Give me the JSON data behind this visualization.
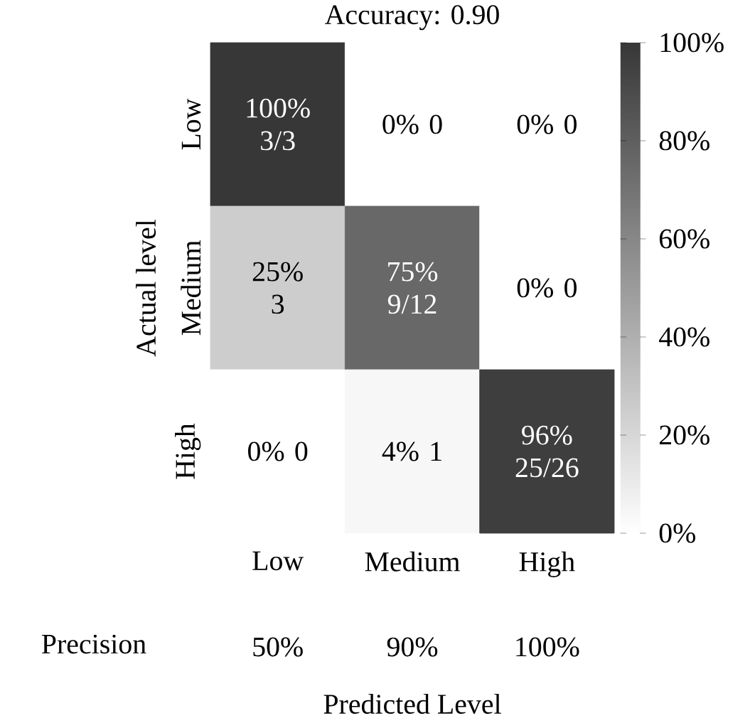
{
  "chart_data": {
    "type": "heatmap",
    "title": "Accuracy: 0.90",
    "xlabel": "Predicted Level",
    "ylabel": "Actual level",
    "categories": [
      "Low",
      "Medium",
      "High"
    ],
    "y_categories": [
      "Low",
      "Medium",
      "High"
    ],
    "cells": [
      [
        100,
        0,
        0
      ],
      [
        25,
        75,
        0
      ],
      [
        0,
        4,
        96
      ]
    ],
    "cell_labels": [
      [
        "100% 3/3",
        "0% 0",
        "0% 0"
      ],
      [
        "25% 3",
        "75% 9/12",
        "0% 0"
      ],
      [
        "0% 0",
        "4% 1",
        "96% 25/26"
      ]
    ],
    "clim": [
      0,
      100
    ],
    "cticks": [
      {
        "value": 0,
        "label": "0%"
      },
      {
        "value": 20,
        "label": "20%"
      },
      {
        "value": 40,
        "label": "40%"
      },
      {
        "value": 60,
        "label": "60%"
      },
      {
        "value": 80,
        "label": "80%"
      },
      {
        "value": 100,
        "label": "100%"
      }
    ],
    "annotations": [
      "Precision",
      "50%",
      "90%",
      "100%"
    ]
  }
}
